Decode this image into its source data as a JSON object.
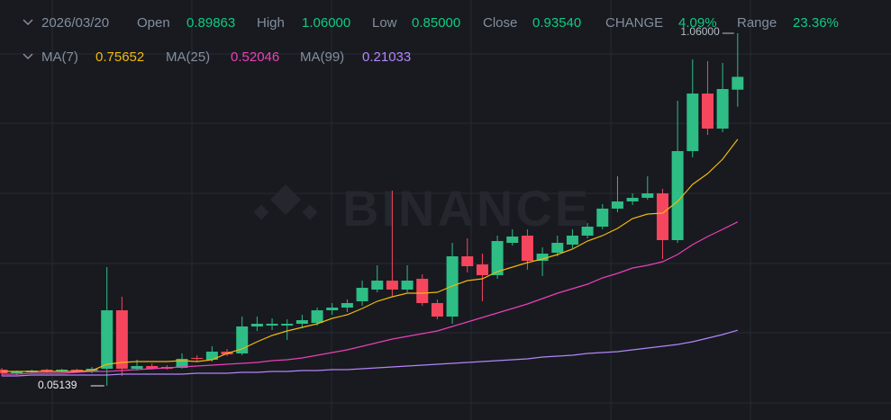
{
  "header": {
    "date": "2026/03/20",
    "fields": [
      {
        "label": "Open",
        "value": "0.89863"
      },
      {
        "label": "High",
        "value": "1.06000"
      },
      {
        "label": "Low",
        "value": "0.85000"
      },
      {
        "label": "Close",
        "value": "0.93540"
      },
      {
        "label": "CHANGE",
        "value": "4.09%"
      },
      {
        "label": "Range",
        "value": "23.36%"
      }
    ]
  },
  "watermark": "BINANCE",
  "chart_data": {
    "type": "candlestick",
    "up_color": "#2ebd85",
    "down_color": "#f6465d",
    "open": [
      0.0977,
      0.0874,
      0.09,
      0.0977,
      0.0926,
      0.0977,
      0.0926,
      0.1003,
      0.2675,
      0.1003,
      0.108,
      0.1054,
      0.1029,
      0.1312,
      0.126,
      0.1492,
      0.144,
      0.2212,
      0.2238,
      0.2238,
      0.2289,
      0.2315,
      0.2675,
      0.2752,
      0.2933,
      0.3267,
      0.3524,
      0.3267,
      0.3576,
      0.2881,
      0.2495,
      0.4219,
      0.3987,
      0.3679,
      0.4605,
      0.4811,
      0.409,
      0.4322,
      0.4554,
      0.4811,
      0.5068,
      0.5583,
      0.5789,
      0.5892,
      0.602,
      0.4682,
      0.7229,
      0.8876,
      0.7873,
      0.89863
    ],
    "high": [
      0.1029,
      0.0951,
      0.0977,
      0.1003,
      0.1003,
      0.1003,
      0.1054,
      0.391,
      0.3061,
      0.126,
      0.1157,
      0.1106,
      0.144,
      0.1389,
      0.1646,
      0.1569,
      0.2495,
      0.2495,
      0.2444,
      0.2418,
      0.2547,
      0.2752,
      0.2881,
      0.2984,
      0.3524,
      0.3962,
      0.6097,
      0.3962,
      0.3704,
      0.2984,
      0.4605,
      0.4734,
      0.4296,
      0.4811,
      0.4991,
      0.4991,
      0.4476,
      0.4811,
      0.4991,
      0.5171,
      0.5711,
      0.6509,
      0.602,
      0.6509,
      0.6149,
      0.867,
      0.9854,
      0.9802,
      0.9751,
      1.06
    ],
    "low": [
      0.0797,
      0.0823,
      0.0874,
      0.09,
      0.09,
      0.09,
      0.0874,
      0.05139,
      0.0797,
      0.0951,
      0.0977,
      0.0977,
      0.1003,
      0.1209,
      0.1209,
      0.1363,
      0.1389,
      0.2083,
      0.2109,
      0.1826,
      0.2161,
      0.2238,
      0.2547,
      0.2624,
      0.2804,
      0.319,
      0.3061,
      0.319,
      0.2804,
      0.2418,
      0.2289,
      0.3756,
      0.2933,
      0.3576,
      0.4528,
      0.3833,
      0.3653,
      0.4219,
      0.4451,
      0.4734,
      0.4991,
      0.548,
      0.5686,
      0.584,
      0.4142,
      0.4605,
      0.7049,
      0.7693,
      0.777,
      0.85
    ],
    "close": [
      0.0874,
      0.0926,
      0.0951,
      0.0926,
      0.0977,
      0.0926,
      0.1003,
      0.2675,
      0.1003,
      0.108,
      0.1003,
      0.1003,
      0.1286,
      0.1286,
      0.1492,
      0.1414,
      0.2212,
      0.2289,
      0.2289,
      0.2289,
      0.2392,
      0.2675,
      0.2752,
      0.2881,
      0.3318,
      0.3524,
      0.3267,
      0.3524,
      0.2881,
      0.2495,
      0.4219,
      0.3936,
      0.3679,
      0.4656,
      0.4785,
      0.409,
      0.4296,
      0.4605,
      0.4811,
      0.5068,
      0.5583,
      0.5789,
      0.5892,
      0.602,
      0.4682,
      0.7229,
      0.8876,
      0.7873,
      0.9005,
      0.9354
    ],
    "series": [
      {
        "name": "MA(7)",
        "color": "#f0b90b",
        "values": [
          0.0926,
          0.0926,
          0.0926,
          0.0926,
          0.0926,
          0.0926,
          0.0951,
          0.1132,
          0.1183,
          0.1209,
          0.1209,
          0.1209,
          0.1234,
          0.1209,
          0.126,
          0.144,
          0.1569,
          0.1775,
          0.1955,
          0.2083,
          0.2186,
          0.2289,
          0.2444,
          0.2547,
          0.2727,
          0.2933,
          0.3061,
          0.3164,
          0.3164,
          0.319,
          0.337,
          0.3524,
          0.3576,
          0.3782,
          0.391,
          0.4039,
          0.4142,
          0.4271,
          0.4425,
          0.4656,
          0.4811,
          0.5017,
          0.53,
          0.5428,
          0.5454,
          0.5789,
          0.6278,
          0.6586,
          0.6998,
          0.75652
        ]
      },
      {
        "name": "MA(25)",
        "color": "#eb40b5",
        "values": [
          0.0848,
          0.0848,
          0.0874,
          0.0874,
          0.0874,
          0.09,
          0.0926,
          0.0926,
          0.0951,
          0.0977,
          0.1003,
          0.1029,
          0.1054,
          0.108,
          0.1106,
          0.1132,
          0.1157,
          0.1183,
          0.1234,
          0.126,
          0.1312,
          0.1389,
          0.1466,
          0.1543,
          0.1646,
          0.1749,
          0.1852,
          0.1929,
          0.2006,
          0.2083,
          0.2212,
          0.2341,
          0.2469,
          0.2598,
          0.2727,
          0.2855,
          0.301,
          0.3164,
          0.3293,
          0.3421,
          0.3602,
          0.373,
          0.3885,
          0.3962,
          0.4065,
          0.4271,
          0.4554,
          0.4785,
          0.4991,
          0.52046
        ]
      },
      {
        "name": "MA(99)",
        "color": "#b385f8",
        "values": [
          0.0797,
          0.0797,
          0.0823,
          0.0823,
          0.0823,
          0.0823,
          0.0823,
          0.0823,
          0.0848,
          0.0848,
          0.0848,
          0.0848,
          0.0848,
          0.0874,
          0.0874,
          0.0874,
          0.09,
          0.09,
          0.0926,
          0.0926,
          0.0951,
          0.0951,
          0.0977,
          0.0977,
          0.1003,
          0.1029,
          0.1054,
          0.108,
          0.1106,
          0.1132,
          0.1157,
          0.1183,
          0.1209,
          0.1234,
          0.126,
          0.1286,
          0.1337,
          0.1363,
          0.1389,
          0.144,
          0.1466,
          0.1492,
          0.1543,
          0.1595,
          0.1646,
          0.1698,
          0.1775,
          0.1878,
          0.1981,
          0.21033
        ]
      }
    ],
    "annotations": [
      {
        "value": 1.06,
        "label": "1.06000"
      },
      {
        "value": 0.05139,
        "label": "0.05139"
      }
    ]
  }
}
